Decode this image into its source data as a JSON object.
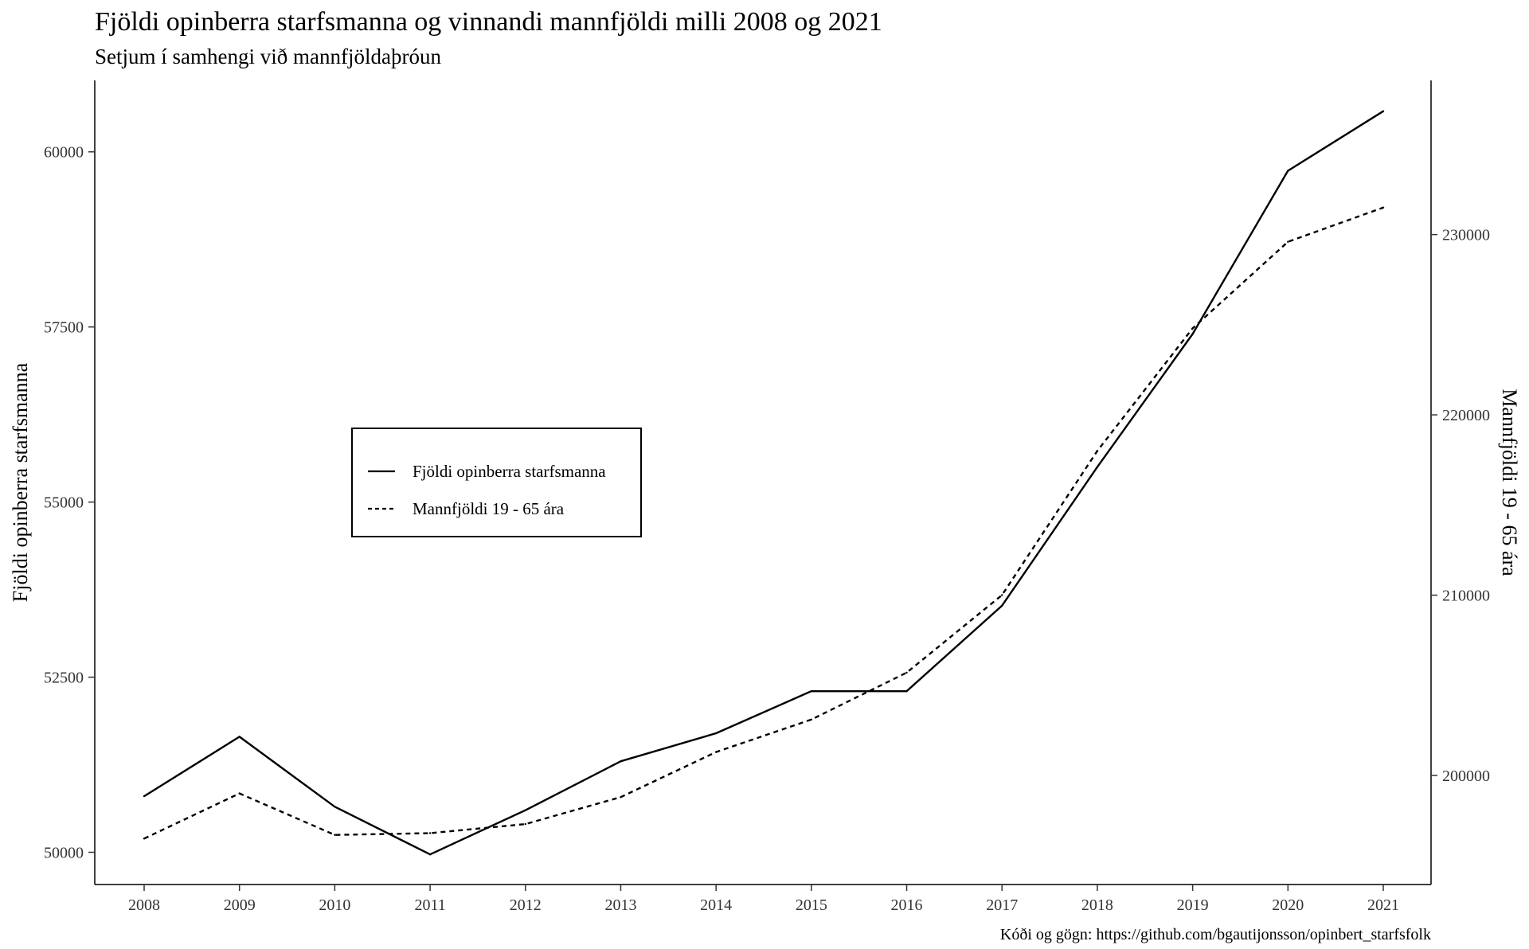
{
  "chart_data": {
    "type": "line",
    "title": "Fjöldi opinberra starfsmanna og vinnandi mannfjöldi milli 2008 og 2021",
    "subtitle": "Setjum í samhengi við mannfjöldaþróun",
    "ylabel": "Fjöldi opinberra starfsmanna",
    "y2label": "Mannfjöldi 19 - 65 ára",
    "caption": "Kóði og gögn: https://github.com/bgautijonsson/opinbert_starfsfolk",
    "x": [
      2008,
      2009,
      2010,
      2011,
      2012,
      2013,
      2014,
      2015,
      2016,
      2017,
      2018,
      2019,
      2020,
      2021
    ],
    "x_ticks": [
      "2008",
      "2009",
      "2010",
      "2011",
      "2012",
      "2013",
      "2014",
      "2015",
      "2016",
      "2017",
      "2018",
      "2019",
      "2020",
      "2021"
    ],
    "ylim": [
      49540,
      61020
    ],
    "y_ticks": [
      "50000",
      "52500",
      "55000",
      "57500",
      "60000"
    ],
    "y2lim": [
      193950,
      238550
    ],
    "y2_ticks": [
      "200000",
      "210000",
      "220000",
      "230000"
    ],
    "grid": false,
    "legend_position": "inside-left",
    "series": [
      {
        "name": "Fjöldi opinberra starfsmanna",
        "axis": "left",
        "linestyle": "solid",
        "color": "#000000",
        "values": [
          50800,
          51650,
          50650,
          49970,
          50600,
          51300,
          51700,
          52300,
          52300,
          53520,
          55500,
          57400,
          59730,
          60580
        ]
      },
      {
        "name": "Mannfjöldi 19 - 65 ára",
        "axis": "right",
        "linestyle": "dashed",
        "color": "#000000",
        "values": [
          196500,
          199000,
          196700,
          196800,
          197300,
          198800,
          201300,
          203100,
          205700,
          210000,
          218000,
          224800,
          229600,
          231500
        ]
      }
    ]
  }
}
